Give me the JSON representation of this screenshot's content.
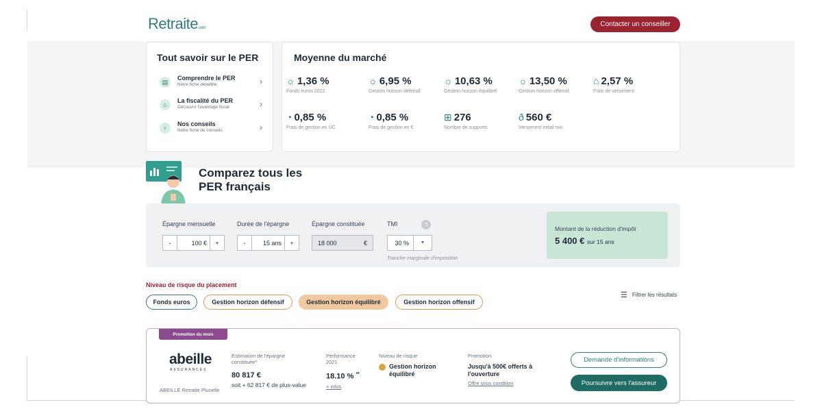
{
  "header": {
    "logo_text": "Retraite",
    "logo_suffix": ".com",
    "contact_button": "Contacter un conseiller"
  },
  "per_card": {
    "title": "Tout savoir sur le PER",
    "items": [
      {
        "icon": "document-icon",
        "title": "Comprendre le PER",
        "subtitle": "Notre fiche détaillée"
      },
      {
        "icon": "piggy-bank-icon",
        "title": "La fiscalité du PER",
        "subtitle": "Découvrir l'avantage fiscal"
      },
      {
        "icon": "lightbulb-icon",
        "title": "Nos conseils",
        "subtitle": "Notre fiche de conseils"
      }
    ]
  },
  "market": {
    "title": "Moyenne du marché",
    "stats": [
      {
        "icon": "sun-icon",
        "value": "1,36 %",
        "label": "Fonds euros 2022"
      },
      {
        "icon": "sun-icon",
        "value": "6,95 %",
        "label": "Gestion horizon défensif"
      },
      {
        "icon": "sun-icon",
        "value": "10,63 %",
        "label": "Gestion horizon équilibré"
      },
      {
        "icon": "sun-icon",
        "value": "13,50 %",
        "label": "Gestion horizon offensif"
      },
      {
        "icon": "house-icon",
        "value": "2,57 %",
        "label": "Frais de versement"
      },
      {
        "icon": "pie-chart-icon",
        "value": "0,85 %",
        "label": "Frais de gestion en UC"
      },
      {
        "icon": "pie-chart-icon",
        "value": "0,85 %",
        "label": "Frais de gestion en €"
      },
      {
        "icon": "grid-icon",
        "value": "276",
        "label": "Nombre de supports"
      },
      {
        "icon": "money-bag-icon",
        "value": "560 €",
        "label": "Versement initial min"
      }
    ]
  },
  "compare": {
    "title_line1": "Comparez tous les",
    "title_line2": "PER français"
  },
  "simulator": {
    "monthly_label": "Épargne mensuelle",
    "monthly_value": "100 €",
    "duration_label": "Durée de l'épargne",
    "duration_value": "15 ans",
    "built_label": "Épargne constituée",
    "built_value": "18 000",
    "built_unit": "€",
    "tmi_label": "TMI",
    "tmi_value": "30 %",
    "tmi_help": "?",
    "tmi_note": "Tranche marginale d'imposition",
    "minus": "-",
    "plus": "+",
    "reduction_label": "Montant de la réduction d'impôt",
    "reduction_value": "5 400 €",
    "reduction_suffix": "sur 15 ans"
  },
  "risk": {
    "title": "Niveau de risque du placement",
    "filters": [
      "Fonds euros",
      "Gestion horizon défensif",
      "Gestion horizon équilibré",
      "Gestion horizon offensif"
    ],
    "active_filter": "Gestion horizon équilibré",
    "filter_results": "Filtrer les résultats"
  },
  "offer": {
    "promo_tag": "Promotion du mois",
    "brand": "abeille",
    "brand_sub": "ASSURANCES",
    "product_name": "ABEILLE Retraite Plurielle",
    "estimate_label": "Estimation de l'épargne constituée*",
    "estimate_value": "80 817 €",
    "estimate_gain": "soit + 62 817 € de plus-value",
    "perf_label": "Performance 2021",
    "perf_value": "18.10 %",
    "perf_mark": "**",
    "perf_link": "+ infos",
    "risk_label": "Niveau de risque",
    "risk_value": "Gestion horizon équilibré",
    "promo_label": "Promotion",
    "promo_value": "Jusqu'à 500€ offerts à l'ouverture",
    "promo_link": "Offre sous condition",
    "info_button": "Demande d'informations",
    "go_button": "Poursuivre vers l'assureur"
  }
}
